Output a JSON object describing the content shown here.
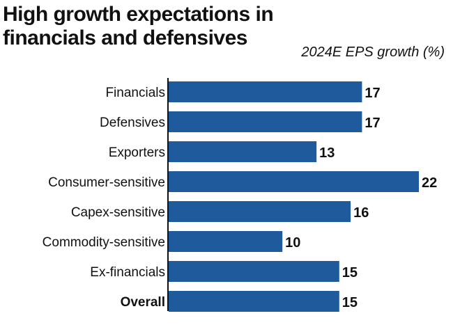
{
  "chart_data": {
    "type": "bar",
    "orientation": "horizontal",
    "title": "High growth expectations in financials and defensives",
    "subtitle": "2024E EPS growth (%)",
    "categories": [
      "Financials",
      "Defensives",
      "Exporters",
      "Consumer-sensitive",
      "Capex-sensitive",
      "Commodity-sensitive",
      "Ex-financials",
      "Overall"
    ],
    "values": [
      17,
      17,
      13,
      22,
      16,
      10,
      15,
      15
    ],
    "bold_categories": [
      "Overall"
    ],
    "bar_color": "#1f5b9c",
    "xlim": [
      0,
      22
    ],
    "grid": false,
    "legend": "none"
  }
}
